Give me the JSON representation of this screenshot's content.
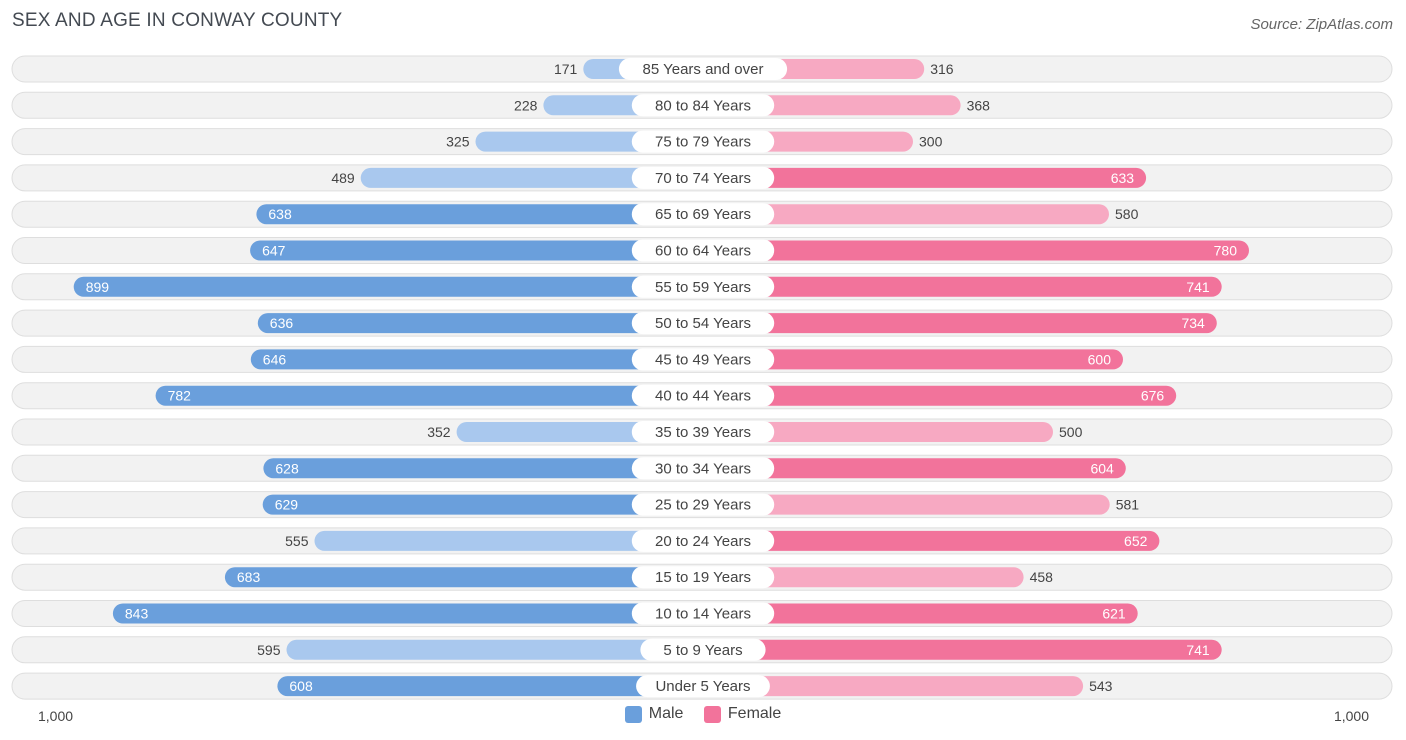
{
  "title": "SEX AND AGE IN CONWAY COUNTY",
  "source": "Source: ZipAtlas.com",
  "axis": {
    "left_label": "1,000",
    "right_label": "1,000"
  },
  "legend": {
    "male_label": "Male",
    "female_label": "Female"
  },
  "colors": {
    "male_strong": "#6a9fdc",
    "male_light": "#a9c8ee",
    "female_strong": "#f2739b",
    "female_light": "#f7a9c2",
    "row_bg": "#f2f2f2",
    "row_border": "#dedede"
  },
  "chart_data": {
    "type": "bar",
    "orientation": "horizontal-butterfly",
    "title": "SEX AND AGE IN CONWAY COUNTY",
    "xlim": [
      0,
      1000
    ],
    "categories": [
      "85 Years and over",
      "80 to 84 Years",
      "75 to 79 Years",
      "70 to 74 Years",
      "65 to 69 Years",
      "60 to 64 Years",
      "55 to 59 Years",
      "50 to 54 Years",
      "45 to 49 Years",
      "40 to 44 Years",
      "35 to 39 Years",
      "30 to 34 Years",
      "25 to 29 Years",
      "20 to 24 Years",
      "15 to 19 Years",
      "10 to 14 Years",
      "5 to 9 Years",
      "Under 5 Years"
    ],
    "series": [
      {
        "name": "Male",
        "values": [
          171,
          228,
          325,
          489,
          638,
          647,
          899,
          636,
          646,
          782,
          352,
          628,
          629,
          555,
          683,
          843,
          595,
          608
        ]
      },
      {
        "name": "Female",
        "values": [
          316,
          368,
          300,
          633,
          580,
          780,
          741,
          734,
          600,
          676,
          500,
          604,
          581,
          652,
          458,
          621,
          741,
          543
        ]
      }
    ],
    "legend_position": "bottom-center"
  }
}
